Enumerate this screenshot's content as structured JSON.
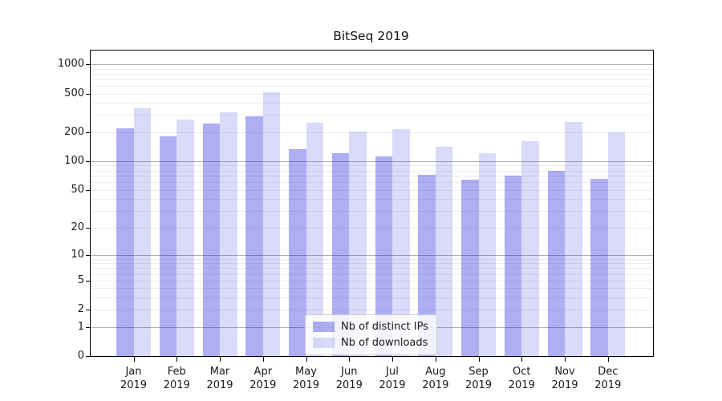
{
  "title": "BitSeq 2019",
  "chart_data": {
    "type": "bar",
    "title": "BitSeq 2019",
    "y_scale": "log(value+1)",
    "grid": true,
    "legend_position": "lower center",
    "categories": [
      "Jan",
      "Feb",
      "Mar",
      "Apr",
      "May",
      "Jun",
      "Jul",
      "Aug",
      "Sep",
      "Oct",
      "Nov",
      "Dec"
    ],
    "year": "2019",
    "series": [
      {
        "name": "Nb of distinct IPs",
        "color": "rgba(30,30,220,0.36)",
        "values": [
          220,
          182,
          245,
          290,
          132,
          121,
          113,
          72,
          64,
          71,
          80,
          65
        ]
      },
      {
        "name": "Nb of downloads",
        "color": "rgba(30,30,220,0.165)",
        "values": [
          350,
          270,
          317,
          510,
          250,
          202,
          214,
          142,
          122,
          162,
          255,
          200
        ]
      }
    ],
    "y_ticks": [
      1000,
      500,
      200,
      100,
      50,
      20,
      10,
      5,
      2,
      1,
      0
    ],
    "ylim": [
      0,
      1383
    ]
  }
}
